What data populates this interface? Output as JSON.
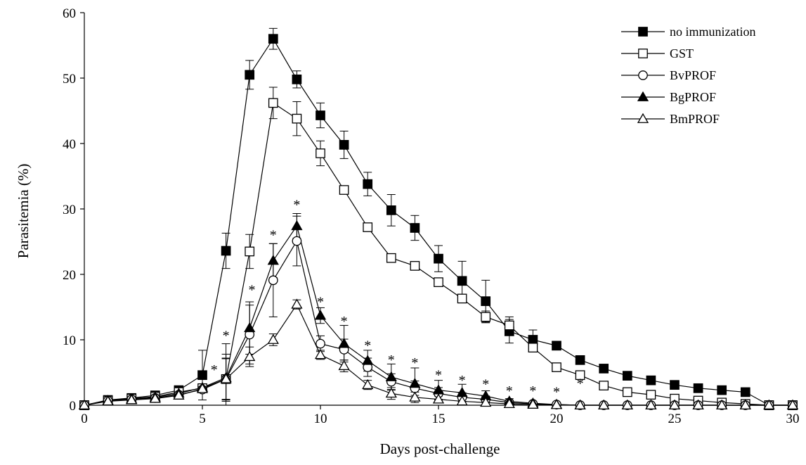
{
  "chart_data": {
    "type": "line",
    "xlabel": "Days post-challenge",
    "ylabel": "Parasitemia  (%)",
    "xlim": [
      0,
      30
    ],
    "ylim": [
      0,
      60
    ],
    "xticks": [
      "0",
      "5",
      "10",
      "15",
      "20",
      "25",
      "30"
    ],
    "yticks": [
      "0",
      "10",
      "20",
      "30",
      "40",
      "50",
      "60"
    ],
    "grid": false,
    "legend_position": "top-right",
    "x": [
      0,
      1,
      2,
      3,
      4,
      5,
      6,
      7,
      8,
      9,
      10,
      11,
      12,
      13,
      14,
      15,
      16,
      17,
      18,
      19,
      20,
      21,
      22,
      23,
      24,
      25,
      26,
      27,
      28,
      29,
      30
    ],
    "series": [
      {
        "name": "no immunization",
        "marker": "square-filled",
        "values": [
          0,
          0.8,
          1.1,
          1.5,
          2.3,
          4.6,
          23.6,
          50.5,
          56.0,
          49.8,
          44.3,
          39.8,
          33.8,
          29.8,
          27.1,
          22.4,
          19.0,
          15.9,
          11.3,
          10.0,
          9.1,
          6.9,
          5.6,
          4.5,
          3.8,
          3.1,
          2.6,
          2.3,
          2.0,
          0,
          0
        ],
        "errors": [
          0,
          0.3,
          0.3,
          0.3,
          0.5,
          3.8,
          2.7,
          2.2,
          1.6,
          1.3,
          1.9,
          2.1,
          1.8,
          2.4,
          1.9,
          2.0,
          3.0,
          3.2,
          1.8,
          1.5,
          0,
          0,
          0,
          0,
          0,
          0,
          0,
          0,
          0,
          0,
          0
        ]
      },
      {
        "name": "GST",
        "marker": "square-open",
        "values": [
          0,
          0.7,
          1.0,
          1.3,
          2.0,
          2.6,
          4.0,
          23.5,
          46.2,
          43.8,
          38.5,
          32.9,
          27.2,
          22.5,
          21.3,
          18.8,
          16.3,
          13.5,
          12.2,
          8.8,
          5.8,
          4.6,
          3.0,
          2.0,
          1.6,
          1.0,
          0.7,
          0.4,
          0.2,
          0,
          0
        ],
        "errors": [
          0,
          0.2,
          0.2,
          0.3,
          0.4,
          0.5,
          5.4,
          2.6,
          2.4,
          2.6,
          1.9,
          0,
          0,
          0,
          0,
          0,
          0,
          0.9,
          1.3,
          0,
          0,
          0,
          0,
          0,
          0,
          0,
          0,
          0,
          0,
          0,
          0
        ]
      },
      {
        "name": "BvPROF",
        "marker": "circle-open",
        "values": [
          0,
          0.7,
          0.9,
          1.1,
          1.6,
          2.4,
          4.0,
          10.8,
          19.1,
          25.1,
          9.4,
          8.5,
          5.8,
          3.6,
          2.6,
          1.8,
          1.2,
          0.9,
          0.4,
          0.2,
          0.1,
          0,
          0,
          0,
          0,
          0,
          0,
          0,
          0,
          0,
          0
        ],
        "errors": [
          0,
          0.2,
          0.2,
          0.2,
          0.3,
          0.5,
          3.2,
          4.5,
          5.6,
          3.8,
          1.2,
          1.6,
          1.4,
          1.2,
          1.1,
          0.9,
          0.7,
          0.5,
          0.3,
          0.1,
          0,
          0,
          0,
          0,
          0,
          0,
          0,
          0,
          0,
          0,
          0
        ]
      },
      {
        "name": "BgPROF",
        "marker": "triangle-filled",
        "values": [
          0,
          0.7,
          0.9,
          1.2,
          1.8,
          2.7,
          4.2,
          11.8,
          22.1,
          27.4,
          13.7,
          9.4,
          6.8,
          4.3,
          3.3,
          2.3,
          1.9,
          1.4,
          0.6,
          0.3,
          0.1,
          0,
          0,
          0,
          0,
          0,
          0,
          0,
          0,
          0,
          0
        ],
        "errors": [
          0,
          0.2,
          0.2,
          0.2,
          0.3,
          0.5,
          3.6,
          4.0,
          2.6,
          1.9,
          1.2,
          2.8,
          1.6,
          2.0,
          2.4,
          1.5,
          1.3,
          0.8,
          0.4,
          0.2,
          0,
          0,
          0,
          0,
          0,
          0,
          0,
          0,
          0,
          0,
          0
        ]
      },
      {
        "name": "BmPROF",
        "marker": "triangle-open",
        "values": [
          0,
          0.6,
          0.8,
          1.0,
          1.5,
          2.5,
          4.0,
          7.4,
          10.0,
          15.4,
          7.7,
          6.0,
          3.1,
          1.8,
          1.2,
          0.9,
          0.6,
          0.4,
          0.2,
          0.1,
          0.05,
          0,
          0,
          0,
          0,
          0,
          0,
          0,
          0,
          0,
          0
        ],
        "errors": [
          0,
          0.2,
          0.2,
          0.2,
          0.3,
          0.4,
          3.1,
          1.5,
          0.9,
          0.7,
          0.7,
          0.9,
          0.7,
          0.9,
          0.8,
          0.5,
          0.4,
          0.3,
          0.2,
          0.1,
          0,
          0,
          0,
          0,
          0,
          0,
          0,
          0,
          0,
          0,
          0
        ]
      }
    ],
    "annotations": [
      {
        "text": "*",
        "x": 5.5,
        "y": 5.8
      },
      {
        "text": "*",
        "x": 6.0,
        "y": 11.0
      },
      {
        "text": "*",
        "x": 7.1,
        "y": 18.0
      },
      {
        "text": "*",
        "x": 8.0,
        "y": 26.4
      },
      {
        "text": "*",
        "x": 9.0,
        "y": 31.0
      },
      {
        "text": "*",
        "x": 10.0,
        "y": 16.2
      },
      {
        "text": "*",
        "x": 11.0,
        "y": 13.2
      },
      {
        "text": "*",
        "x": 12.0,
        "y": 9.5
      },
      {
        "text": "*",
        "x": 13.0,
        "y": 7.3
      },
      {
        "text": "*",
        "x": 14.0,
        "y": 6.9
      },
      {
        "text": "*",
        "x": 15.0,
        "y": 5.0
      },
      {
        "text": "*",
        "x": 16.0,
        "y": 4.2
      },
      {
        "text": "*",
        "x": 17.0,
        "y": 3.6
      },
      {
        "text": "*",
        "x": 18.0,
        "y": 2.6
      },
      {
        "text": "*",
        "x": 19.0,
        "y": 2.6
      },
      {
        "text": "*",
        "x": 20.0,
        "y": 2.4
      },
      {
        "text": "*",
        "x": 21.0,
        "y": 3.7
      }
    ]
  }
}
